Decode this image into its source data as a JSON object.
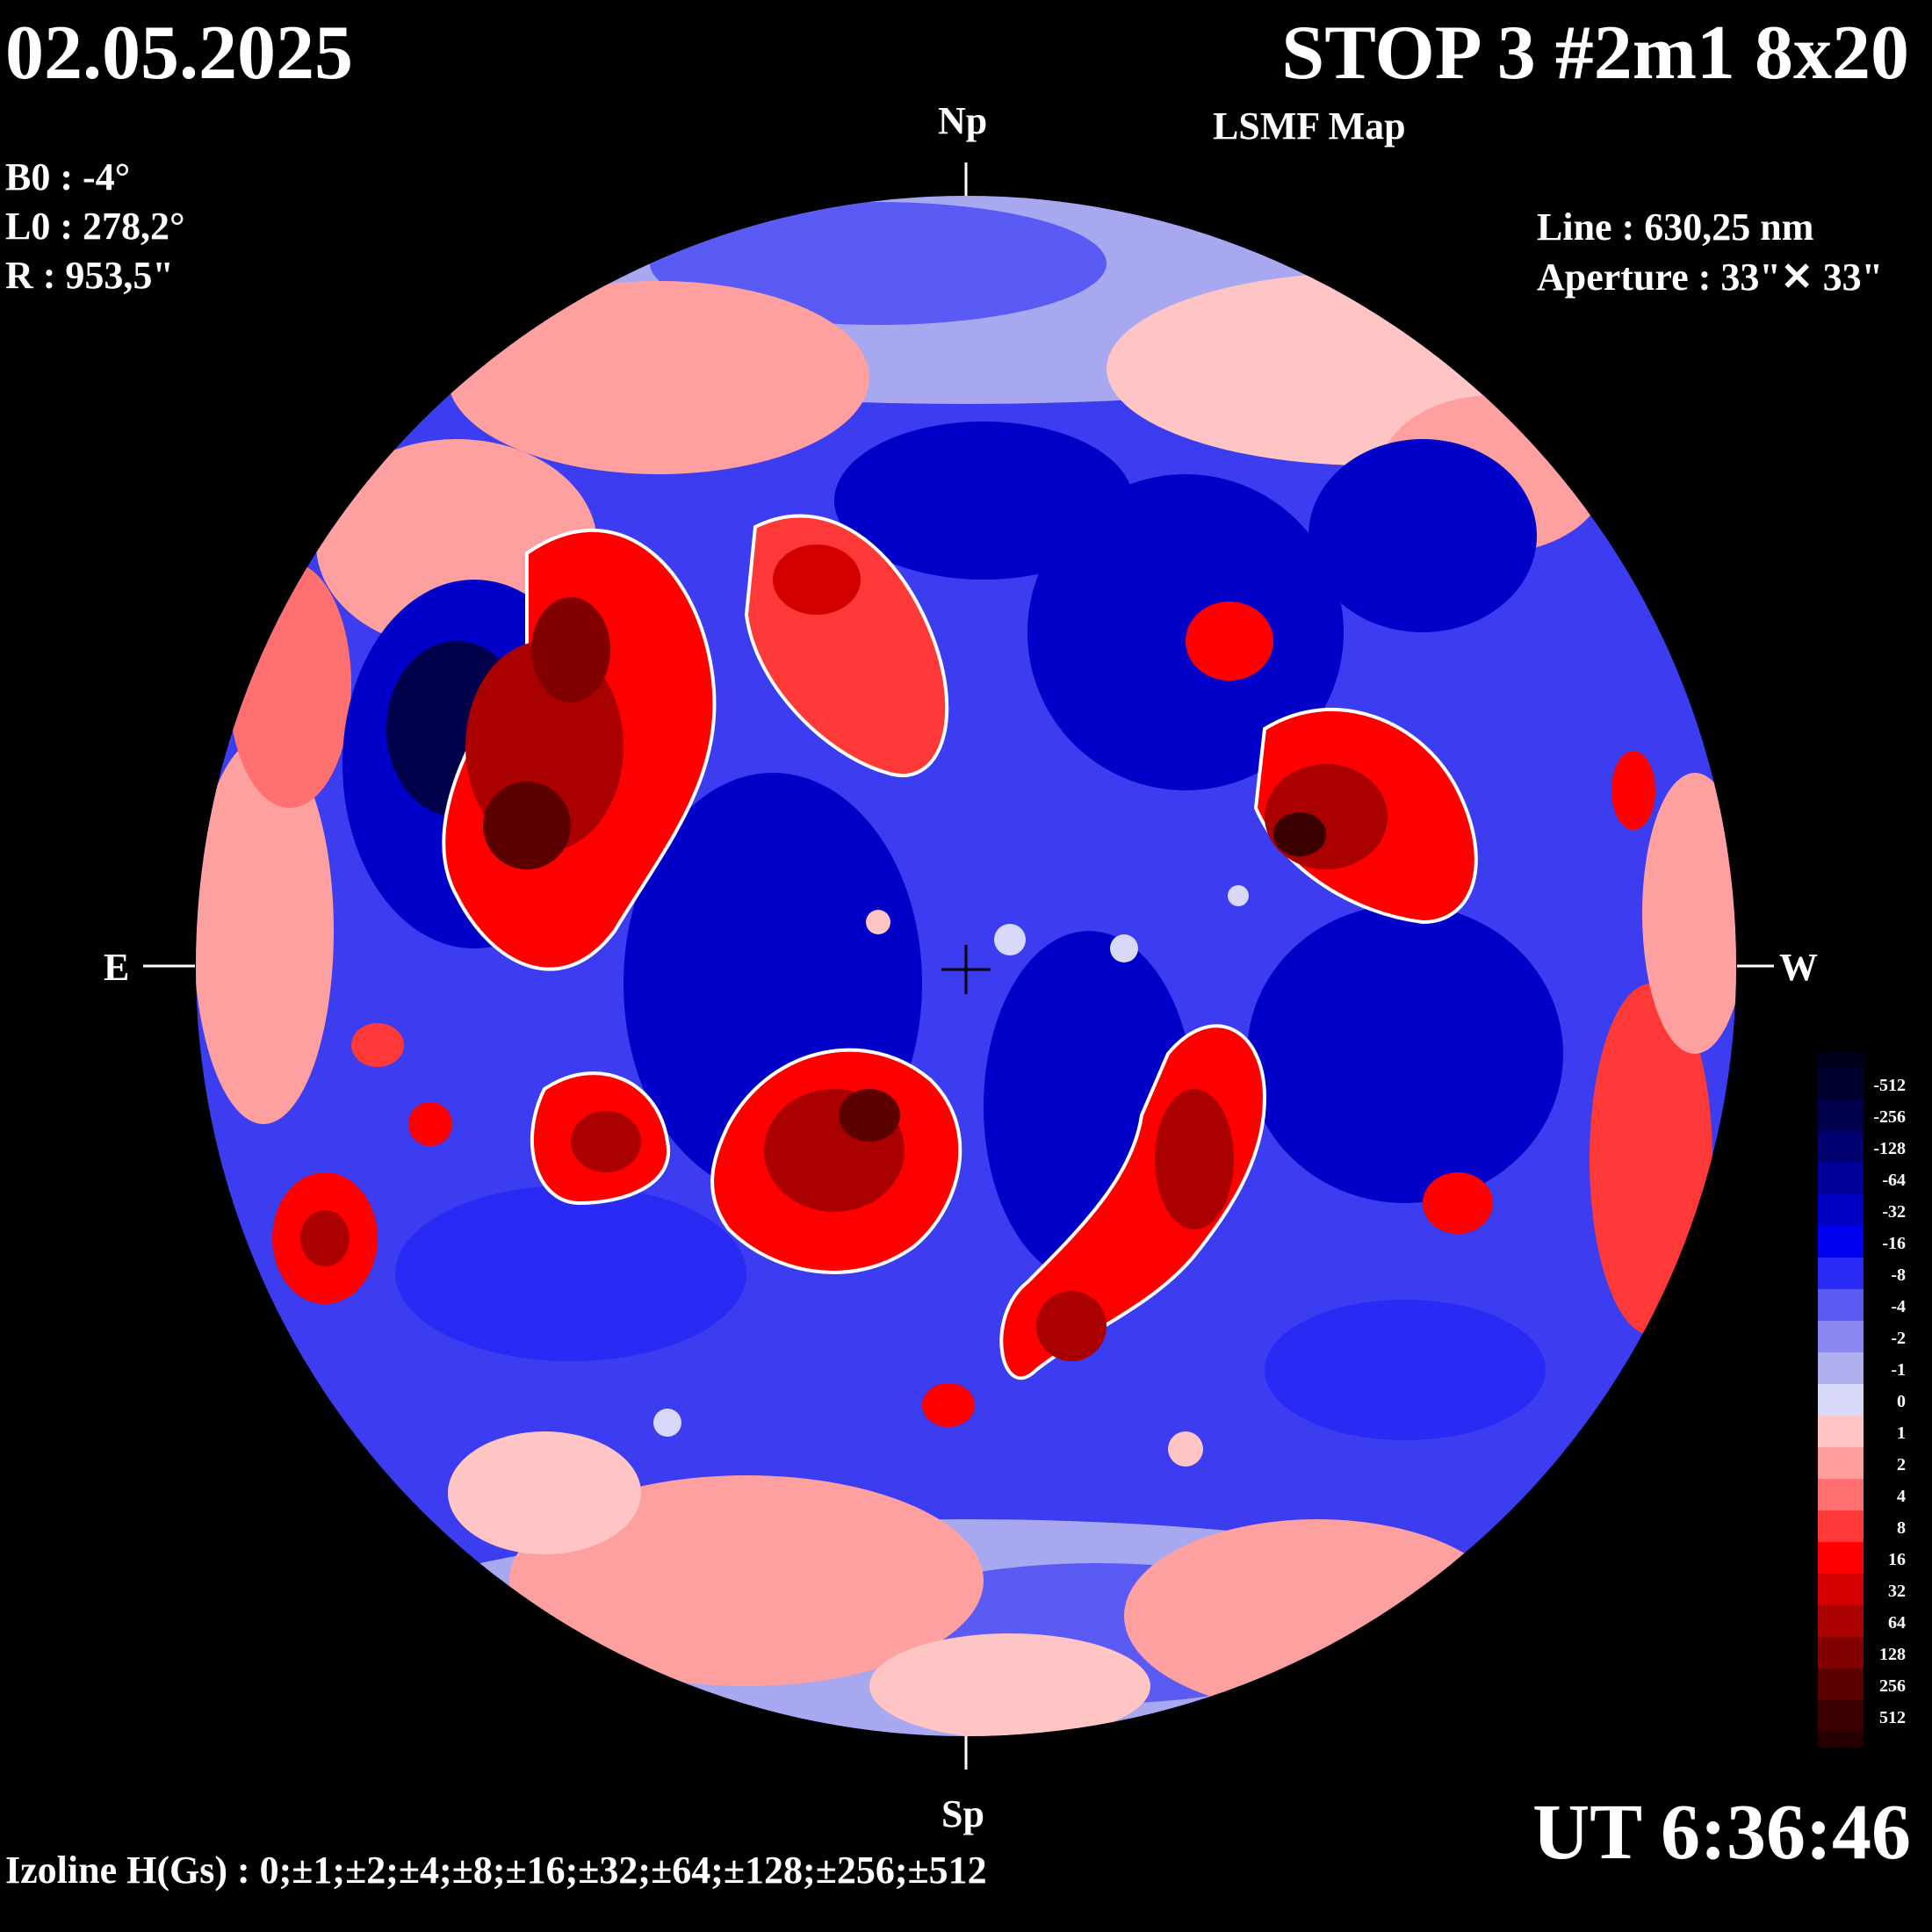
{
  "header": {
    "date": "02.05.2025",
    "title": "STOP 3 #2m1 8x20",
    "subtitle": "LSMF  Map"
  },
  "params": {
    "b0": "B0 : -4°",
    "l0": "L0 : 278,2°",
    "r": "R  : 953,5\""
  },
  "instrument": {
    "line": "Line :  630,25 nm",
    "aperture": "Aperture : 33\"✕ 33\""
  },
  "directions": {
    "north": "Np",
    "south": "Sp",
    "east": "E",
    "west": "W"
  },
  "time": "UT 6:36:46",
  "izoline": "Izoline H(Gs) : 0;±1;±2;±4;±8;±16;±32;±64;±128;±256;±512",
  "colorbar": {
    "levels": [
      {
        "label": "-512",
        "color": "#000030"
      },
      {
        "label": "-256",
        "color": "#00004a"
      },
      {
        "label": "-128",
        "color": "#000070"
      },
      {
        "label": "-64",
        "color": "#00009a"
      },
      {
        "label": "-32",
        "color": "#0000c4"
      },
      {
        "label": "-16",
        "color": "#0000f0"
      },
      {
        "label": "-8",
        "color": "#2a2af5"
      },
      {
        "label": "-4",
        "color": "#5a5af5"
      },
      {
        "label": "-2",
        "color": "#8888f0"
      },
      {
        "label": "-1",
        "color": "#b0b0f0"
      },
      {
        "label": "0",
        "color": "#d8d8f8"
      },
      {
        "label": "1",
        "color": "#ffc4c4"
      },
      {
        "label": "2",
        "color": "#ff9c9c"
      },
      {
        "label": "4",
        "color": "#ff7070"
      },
      {
        "label": "8",
        "color": "#ff3838"
      },
      {
        "label": "16",
        "color": "#ff0000"
      },
      {
        "label": "32",
        "color": "#d40000"
      },
      {
        "label": "64",
        "color": "#aa0000"
      },
      {
        "label": "128",
        "color": "#820000"
      },
      {
        "label": "256",
        "color": "#5c0000"
      },
      {
        "label": "512",
        "color": "#3a0000"
      }
    ],
    "top_color": "#00001c",
    "bottom_color": "#260000"
  },
  "colors": {
    "background": "#000000",
    "disk_base": "#3c3cf0",
    "negative_strong": "#0000c8",
    "negative_weak": "#a8a8f0",
    "positive_weak": "#ffa0a0",
    "positive_strong": "#e00000",
    "izoline_zero": "#ffffff"
  }
}
